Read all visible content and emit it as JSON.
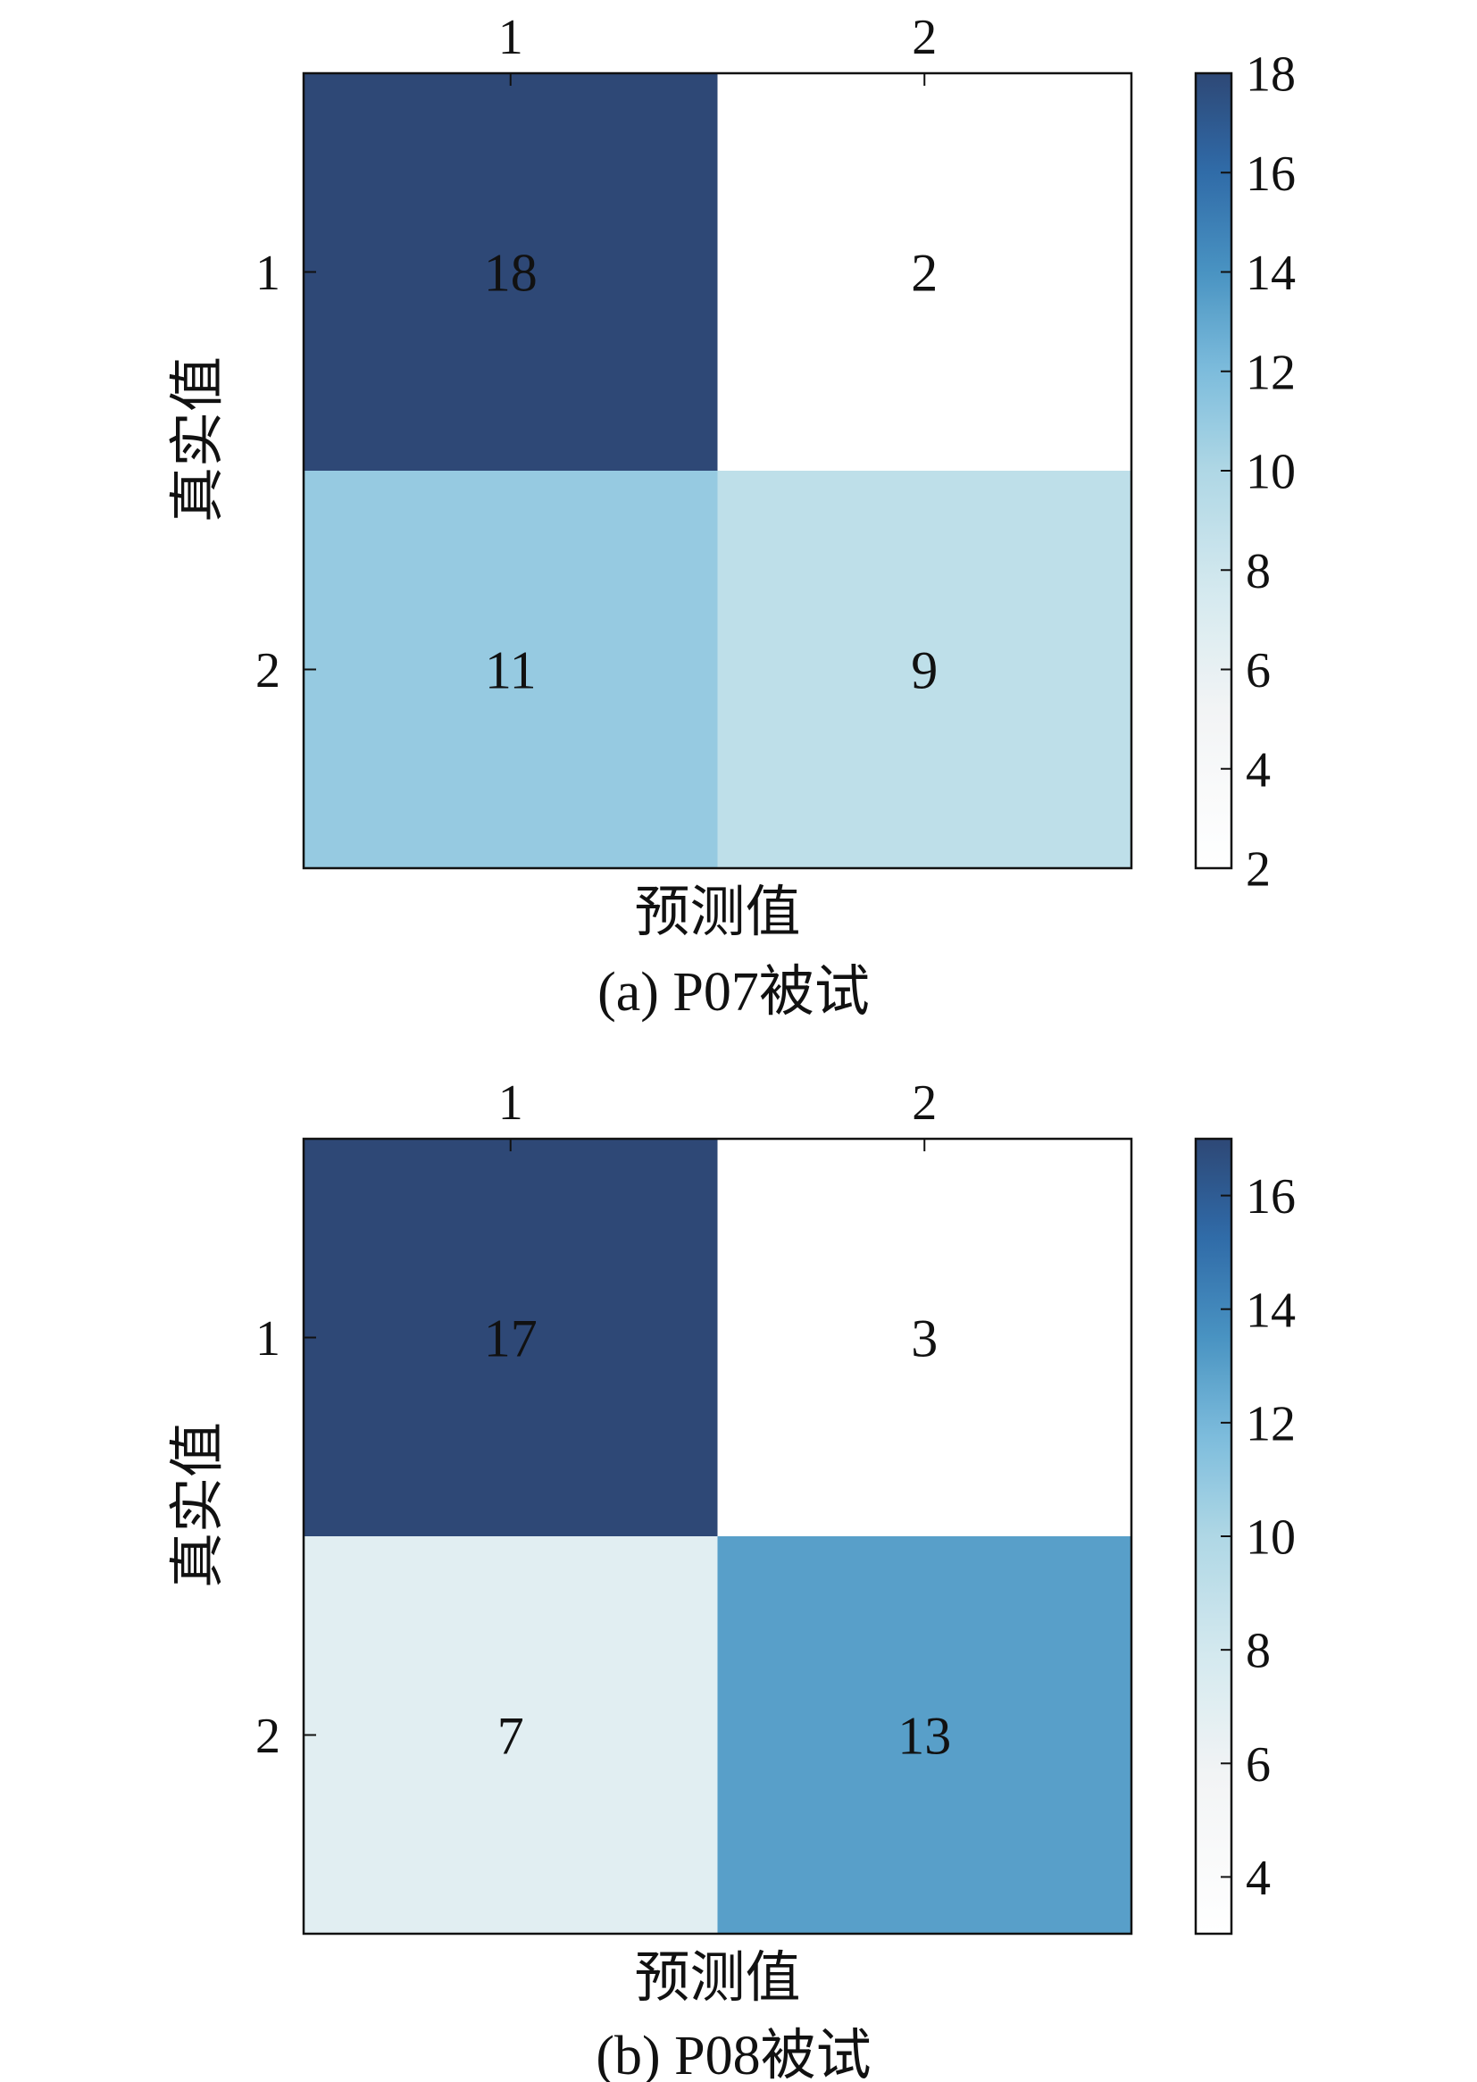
{
  "chart_data": [
    {
      "type": "heatmap",
      "caption": "(a) P07被试",
      "xlabel": "预测值",
      "ylabel": "真实值",
      "x_categories": [
        "1",
        "2"
      ],
      "y_categories": [
        "1",
        "2"
      ],
      "values": [
        [
          18,
          2
        ],
        [
          11,
          9
        ]
      ],
      "colorbar": {
        "range": [
          2,
          18
        ],
        "ticks": [
          2,
          4,
          6,
          8,
          10,
          12,
          14,
          16,
          18
        ]
      }
    },
    {
      "type": "heatmap",
      "caption": "(b) P08被试",
      "xlabel": "预测值",
      "ylabel": "真实值",
      "x_categories": [
        "1",
        "2"
      ],
      "y_categories": [
        "1",
        "2"
      ],
      "values": [
        [
          17,
          3
        ],
        [
          7,
          13
        ]
      ],
      "colorbar": {
        "range": [
          3,
          17
        ],
        "ticks": [
          4,
          6,
          8,
          10,
          12,
          14,
          16
        ]
      }
    }
  ],
  "colormap": {
    "stops": [
      {
        "pos": 0.0,
        "color": "#ffffff"
      },
      {
        "pos": 0.2,
        "color": "#f2f4f5"
      },
      {
        "pos": 0.35,
        "color": "#d4e9ef"
      },
      {
        "pos": 0.5,
        "color": "#afd7e5"
      },
      {
        "pos": 0.62,
        "color": "#7fbedd"
      },
      {
        "pos": 0.75,
        "color": "#4993c2"
      },
      {
        "pos": 0.88,
        "color": "#2f6aa7"
      },
      {
        "pos": 1.0,
        "color": "#2e4876"
      }
    ],
    "light_text": "#ffffff",
    "dark_text": "#111111"
  }
}
